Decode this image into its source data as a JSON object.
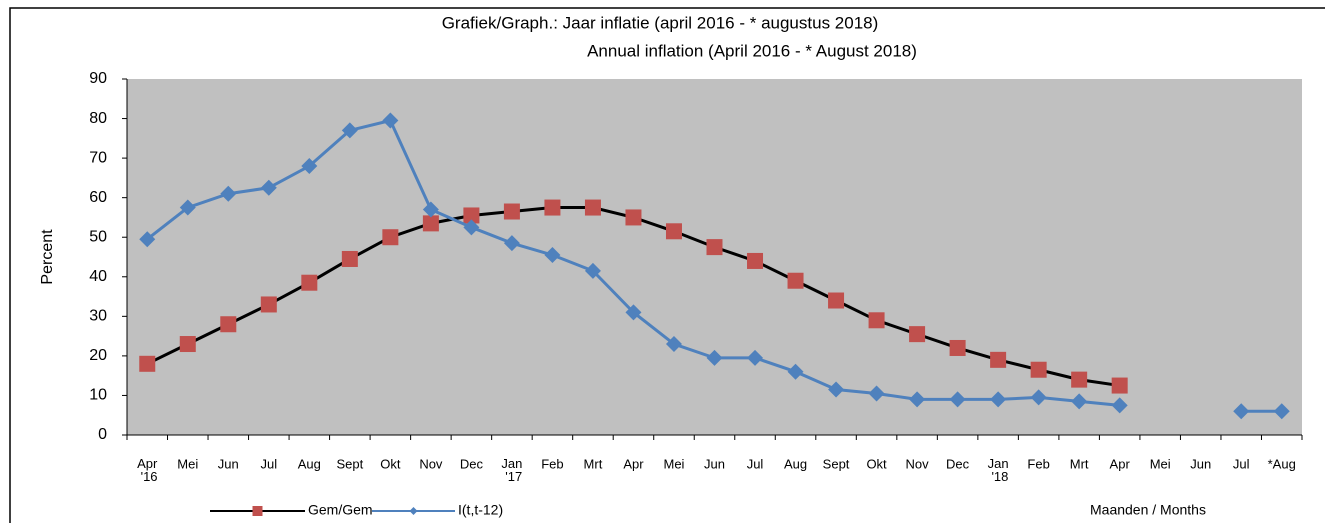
{
  "chart_data": {
    "type": "line",
    "title": "Grafiek/Graph.: Jaar inflatie  (april 2016 -  * augustus  2018)",
    "subtitle": "Annual inflation (April 2016 -  * August 2018)",
    "y_label": "Percent",
    "x_label": "Maanden / Months",
    "categories": [
      "Apr '16",
      "Mei",
      "Jun",
      "Jul",
      "Aug",
      "Sept",
      "Okt",
      "Nov",
      "Dec",
      "Jan '17",
      "Feb",
      "Mrt",
      "Apr",
      "Mei",
      "Jun",
      "Jul",
      "Aug",
      "Sept",
      "Okt",
      "Nov",
      "Dec",
      "Jan '18",
      "Feb",
      "Mrt",
      "Apr",
      "Mei",
      "Jun",
      "Jul",
      "*Aug"
    ],
    "series": [
      {
        "name": "Gem/Gem",
        "color": "#000000",
        "marker_color": "#c0504d",
        "marker": "square",
        "values": [
          18,
          23,
          28,
          33,
          38.5,
          44.5,
          50,
          53.5,
          55.5,
          56.5,
          57.5,
          57.5,
          55,
          51.5,
          47.5,
          44,
          39,
          34,
          29,
          25.5,
          22,
          19,
          16.5,
          14,
          12.5,
          null,
          null,
          null,
          null
        ]
      },
      {
        "name": "I(t,t-12)",
        "color": "#4f81bd",
        "marker_color": "#4f81bd",
        "marker": "diamond",
        "values": [
          49.5,
          57.5,
          61,
          62.5,
          68,
          77,
          79.5,
          57,
          52.5,
          48.5,
          45.5,
          41.5,
          31,
          23,
          19.5,
          19.5,
          16,
          11.5,
          10.5,
          9,
          9,
          9,
          9.5,
          8.5,
          7.5,
          null,
          null,
          6,
          6
        ]
      }
    ],
    "ylim": [
      0,
      90
    ],
    "yticks": [
      0,
      10,
      20,
      30,
      40,
      50,
      60,
      70,
      80,
      90
    ],
    "plot_background": "#c0c0c0"
  }
}
